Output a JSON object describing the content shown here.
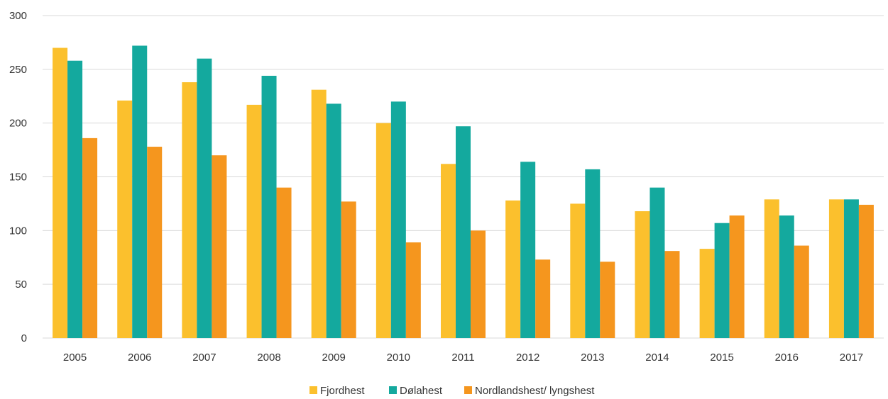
{
  "chart_data": {
    "type": "bar",
    "title": "",
    "xlabel": "",
    "ylabel": "",
    "ylim": [
      0,
      300
    ],
    "yticks": [
      0,
      50,
      100,
      150,
      200,
      250,
      300
    ],
    "grid": true,
    "legend_position": "bottom-center",
    "categories": [
      "2005",
      "2006",
      "2007",
      "2008",
      "2009",
      "2010",
      "2011",
      "2012",
      "2013",
      "2014",
      "2015",
      "2016",
      "2017"
    ],
    "series": [
      {
        "name": "Fjordhest",
        "color": "#FBC02D",
        "values": [
          270,
          221,
          238,
          217,
          231,
          200,
          162,
          128,
          125,
          118,
          83,
          129,
          129
        ]
      },
      {
        "name": "Dølahest",
        "color": "#14A99E",
        "values": [
          258,
          272,
          260,
          244,
          218,
          220,
          197,
          164,
          157,
          140,
          107,
          114,
          129
        ]
      },
      {
        "name": "Nordlandshest/ lyngshest",
        "color": "#F5961E",
        "values": [
          186,
          178,
          170,
          140,
          127,
          89,
          100,
          73,
          71,
          81,
          114,
          86,
          124
        ]
      }
    ]
  }
}
